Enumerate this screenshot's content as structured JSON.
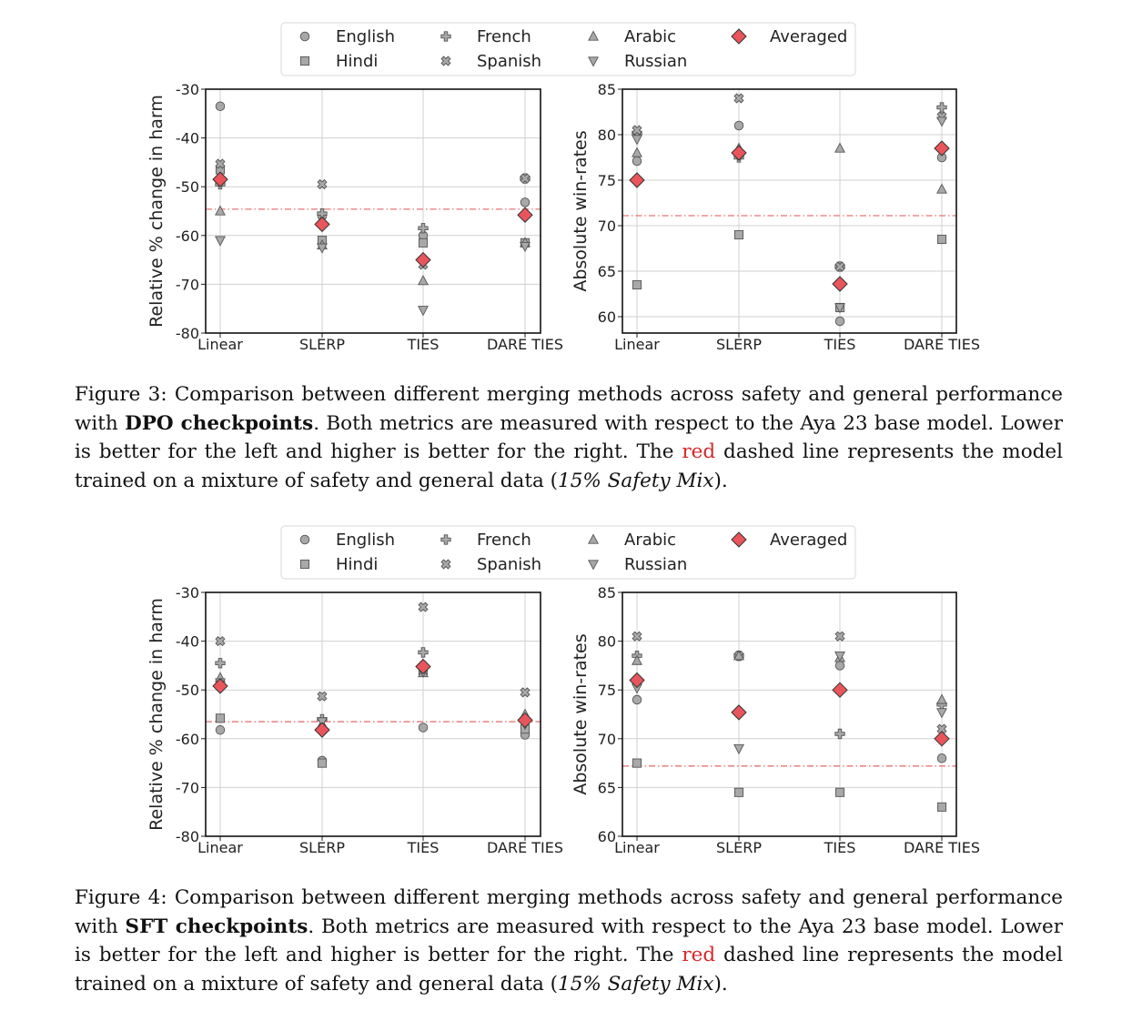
{
  "colors": {
    "averaged": "#e8555b",
    "marker_fill": "#a8a8a8",
    "ref_line": "#e87373"
  },
  "legend": {
    "entries": [
      {
        "label": "English",
        "marker": "circle"
      },
      {
        "label": "French",
        "marker": "plus"
      },
      {
        "label": "Arabic",
        "marker": "triangle-up"
      },
      {
        "label": "Averaged",
        "marker": "diamond"
      },
      {
        "label": "Hindi",
        "marker": "square"
      },
      {
        "label": "Spanish",
        "marker": "x"
      },
      {
        "label": "Russian",
        "marker": "triangle-down"
      }
    ]
  },
  "captions": [
    {
      "label": "Figure 3:",
      "text1": " Comparison between different merging methods across safety and general performance with ",
      "bold": "DPO checkpoints",
      "text2": ". Both metrics are measured with respect to the Aya 23 base model. Lower is better for the left and higher is better for the right. The ",
      "red": "red",
      "text3": " dashed line represents the model trained on a mixture of safety and general data (",
      "italic": "15% Safety Mix",
      "text4": ")."
    },
    {
      "label": "Figure 4:",
      "text1": " Comparison between different merging methods across safety and general performance with ",
      "bold": "SFT checkpoints",
      "text2": ". Both metrics are measured with respect to the Aya 23 base model. Lower is better for the left and higher is better for the right. The ",
      "red": "red",
      "text3": " dashed line represents the model trained on a mixture of safety and general data (",
      "italic": "15% Safety Mix",
      "text4": ")."
    }
  ],
  "chart_data": [
    {
      "type": "scatter",
      "figure": "Figure 3",
      "ylabel": "Relative % change in harm",
      "categories": [
        "Linear",
        "SLERP",
        "TIES",
        "DARE TIES"
      ],
      "ylim": [
        -80,
        -30
      ],
      "yticks": [
        -30,
        -40,
        -50,
        -60,
        -70,
        -80
      ],
      "grid": true,
      "reference_line": -54.6,
      "series": [
        {
          "name": "English",
          "values": [
            -33.5,
            -56,
            -60,
            -53.2
          ]
        },
        {
          "name": "Hindi",
          "values": [
            -46.5,
            -61,
            -61.5,
            -61.5
          ]
        },
        {
          "name": "French",
          "values": [
            -49.5,
            -55.5,
            -58.5,
            -48.3
          ]
        },
        {
          "name": "Spanish",
          "values": [
            -45.3,
            -49.5,
            -66,
            -48.3
          ]
        },
        {
          "name": "Arabic",
          "values": [
            -55,
            -62,
            -69.3,
            -61.5
          ]
        },
        {
          "name": "Russian",
          "values": [
            -61,
            -62.5,
            -75.3,
            -62.2
          ]
        },
        {
          "name": "Averaged",
          "values": [
            -48.5,
            -57.7,
            -65,
            -55.8
          ]
        }
      ]
    },
    {
      "type": "scatter",
      "figure": "Figure 3",
      "ylabel": "Absolute win-rates",
      "categories": [
        "Linear",
        "SLERP",
        "TIES",
        "DARE TIES"
      ],
      "ylim": [
        58.2,
        85
      ],
      "yticks": [
        85,
        80,
        75,
        70,
        65,
        60
      ],
      "grid": true,
      "reference_line": 71.1,
      "series": [
        {
          "name": "English",
          "values": [
            77.1,
            81,
            59.5,
            77.5
          ]
        },
        {
          "name": "Hindi",
          "values": [
            63.5,
            69,
            61,
            68.5
          ]
        },
        {
          "name": "French",
          "values": [
            80.2,
            77.5,
            65.5,
            83
          ]
        },
        {
          "name": "Spanish",
          "values": [
            80.5,
            84,
            65.5,
            82
          ]
        },
        {
          "name": "Arabic",
          "values": [
            78,
            78.5,
            78.5,
            74
          ]
        },
        {
          "name": "Russian",
          "values": [
            79.5,
            77.8,
            61,
            81.5
          ]
        },
        {
          "name": "Averaged",
          "values": [
            75,
            78,
            63.6,
            78.5
          ]
        }
      ]
    },
    {
      "type": "scatter",
      "figure": "Figure 4",
      "ylabel": "Relative % change in harm",
      "categories": [
        "Linear",
        "SLERP",
        "TIES",
        "DARE TIES"
      ],
      "ylim": [
        -80,
        -30
      ],
      "yticks": [
        -30,
        -40,
        -50,
        -60,
        -70,
        -80
      ],
      "grid": true,
      "reference_line": -56.5,
      "series": [
        {
          "name": "English",
          "values": [
            -58.2,
            -64.5,
            -57.7,
            -59.2
          ]
        },
        {
          "name": "Hindi",
          "values": [
            -55.8,
            -65,
            -46,
            -58
          ]
        },
        {
          "name": "French",
          "values": [
            -44.5,
            -56,
            -42.3,
            -56
          ]
        },
        {
          "name": "Spanish",
          "values": [
            -40,
            -51.3,
            -33,
            -50.5
          ]
        },
        {
          "name": "Arabic",
          "values": [
            -47.5,
            -57,
            -46.5,
            -55
          ]
        },
        {
          "name": "Russian",
          "values": [
            -48.5,
            -56.5,
            -46.3,
            -57
          ]
        },
        {
          "name": "Averaged",
          "values": [
            -49.2,
            -58.2,
            -45.2,
            -56.2
          ]
        }
      ]
    },
    {
      "type": "scatter",
      "figure": "Figure 4",
      "ylabel": "Absolute win-rates",
      "categories": [
        "Linear",
        "SLERP",
        "TIES",
        "DARE TIES"
      ],
      "ylim": [
        60,
        85
      ],
      "yticks": [
        85,
        80,
        75,
        70,
        65,
        60
      ],
      "grid": true,
      "reference_line": 67.2,
      "series": [
        {
          "name": "English",
          "values": [
            74,
            78.5,
            77.5,
            68
          ]
        },
        {
          "name": "Hindi",
          "values": [
            67.5,
            64.5,
            64.5,
            63
          ]
        },
        {
          "name": "French",
          "values": [
            78.5,
            78.5,
            70.5,
            73.5
          ]
        },
        {
          "name": "Spanish",
          "values": [
            80.5,
            78.5,
            80.5,
            71
          ]
        },
        {
          "name": "Arabic",
          "values": [
            78,
            78.5,
            78.3,
            74
          ]
        },
        {
          "name": "Russian",
          "values": [
            75.2,
            69,
            78.5,
            72.7
          ]
        },
        {
          "name": "Averaged",
          "values": [
            76,
            72.7,
            75,
            70
          ]
        }
      ]
    }
  ]
}
